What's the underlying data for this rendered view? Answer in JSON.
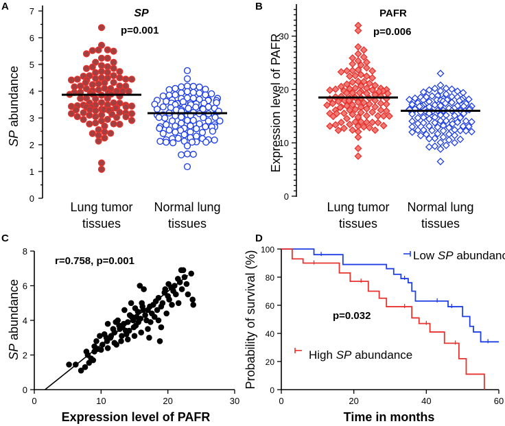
{
  "colors": {
    "red": "#e8312c",
    "red_fill": "#f07a76",
    "red_edge": "#a04040",
    "blue": "#1f3fe6",
    "black": "#000000"
  },
  "chart_data": [
    {
      "panel": "A",
      "type": "scatter",
      "title": "SP",
      "annotation": "p=0.001",
      "ylabel": "SP abundance",
      "ylabel_italic_part": "SP",
      "ylabel_rest": " abundance",
      "ylim": [
        0,
        7
      ],
      "yticks": [
        0,
        1,
        2,
        3,
        4,
        5,
        6,
        7
      ],
      "categories": [
        {
          "line1": "Lung tumor",
          "line2": "tissues",
          "n": 115,
          "mean": 3.87,
          "min": 1.08,
          "max": 6.38,
          "marker": "circle-filled",
          "color": "#e8312c"
        },
        {
          "line1": "Normal lung",
          "line2": "tissues",
          "n": 115,
          "mean": 3.18,
          "min": 1.18,
          "max": 4.77,
          "marker": "circle-open",
          "color": "#1f3fe6"
        }
      ]
    },
    {
      "panel": "B",
      "type": "scatter",
      "title": "PAFR",
      "annotation": "p=0.006",
      "ylabel": "Expression level of PAFR",
      "ylim": [
        0,
        36
      ],
      "yticks": [
        0,
        10,
        20,
        30
      ],
      "categories": [
        {
          "line1": "Lung tumor",
          "line2": "tissues",
          "n": 115,
          "mean": 18.5,
          "min": 7.5,
          "max": 32.0,
          "marker": "diamond-filled",
          "color": "#e8312c"
        },
        {
          "line1": "Normal lung",
          "line2": "tissues",
          "n": 115,
          "mean": 16.0,
          "min": 6.5,
          "max": 23.0,
          "marker": "diamond-open",
          "color": "#1f3fe6"
        }
      ]
    },
    {
      "panel": "C",
      "type": "scatter",
      "annotation": "r=0.758, p=0.001",
      "xlabel": "Expression level of PAFR",
      "ylabel": "SP abundance",
      "ylabel_italic_part": "SP",
      "ylabel_rest": " abundance",
      "xlim": [
        0,
        30
      ],
      "ylim": [
        0,
        8
      ],
      "xticks": [
        0,
        10,
        20,
        30
      ],
      "yticks": [
        0,
        2,
        4,
        6,
        8
      ],
      "fit": {
        "x0": 1.6,
        "y0": 0.0,
        "x1": 23.0,
        "y1": 6.6
      },
      "points": [
        [
          5.2,
          1.45
        ],
        [
          6.2,
          1.45
        ],
        [
          7.0,
          1.1
        ],
        [
          7.6,
          1.3
        ],
        [
          8.2,
          1.55
        ],
        [
          8.0,
          2.0
        ],
        [
          9.0,
          2.2
        ],
        [
          9.5,
          2.35
        ],
        [
          10.2,
          2.6
        ],
        [
          10.8,
          3.0
        ],
        [
          11.5,
          3.1
        ],
        [
          12.0,
          3.3
        ],
        [
          12.3,
          2.6
        ],
        [
          12.8,
          3.5
        ],
        [
          13.2,
          3.6
        ],
        [
          13.7,
          3.4
        ],
        [
          14.0,
          3.9
        ],
        [
          14.3,
          4.3
        ],
        [
          14.8,
          4.0
        ],
        [
          15.2,
          3.7
        ],
        [
          15.5,
          4.5
        ],
        [
          15.9,
          4.1
        ],
        [
          16.2,
          4.8
        ],
        [
          16.6,
          4.3
        ],
        [
          17.0,
          4.6
        ],
        [
          17.4,
          3.9
        ],
        [
          17.8,
          4.9
        ],
        [
          18.2,
          5.1
        ],
        [
          18.6,
          5.3
        ],
        [
          19.0,
          4.8
        ],
        [
          19.5,
          5.6
        ],
        [
          20.0,
          5.4
        ],
        [
          20.5,
          5.9
        ],
        [
          21.0,
          6.0
        ],
        [
          21.5,
          6.4
        ],
        [
          22.0,
          6.9
        ],
        [
          22.5,
          6.5
        ],
        [
          23.0,
          5.5
        ],
        [
          23.7,
          5.2
        ],
        [
          23.8,
          4.9
        ],
        [
          22.3,
          6.9
        ],
        [
          21.8,
          6.2
        ],
        [
          20.8,
          5.7
        ],
        [
          15.8,
          6.0
        ],
        [
          16.4,
          5.8
        ],
        [
          14.5,
          5.0
        ],
        [
          13.5,
          4.6
        ],
        [
          12.5,
          4.0
        ],
        [
          11.0,
          3.8
        ],
        [
          18.0,
          4.2
        ],
        [
          18.8,
          2.8
        ],
        [
          17.2,
          3.0
        ],
        [
          16.0,
          3.3
        ],
        [
          15.0,
          3.1
        ],
        [
          14.0,
          2.9
        ],
        [
          13.0,
          2.8
        ],
        [
          12.0,
          2.7
        ],
        [
          11.0,
          2.4
        ],
        [
          10.0,
          2.3
        ],
        [
          9.0,
          2.5
        ],
        [
          8.5,
          1.8
        ],
        [
          10.5,
          3.2
        ],
        [
          11.8,
          3.5
        ],
        [
          13.4,
          3.8
        ],
        [
          14.6,
          4.2
        ],
        [
          15.6,
          3.9
        ],
        [
          16.8,
          4.0
        ],
        [
          17.6,
          4.4
        ],
        [
          18.4,
          4.6
        ],
        [
          19.2,
          5.0
        ],
        [
          20.2,
          5.2
        ],
        [
          21.2,
          5.5
        ],
        [
          22.8,
          6.1
        ],
        [
          23.5,
          6.7
        ],
        [
          19.8,
          4.4
        ],
        [
          17.0,
          3.5
        ],
        [
          16.3,
          4.6
        ],
        [
          15.3,
          4.2
        ],
        [
          14.2,
          3.4
        ],
        [
          13.8,
          3.2
        ],
        [
          12.7,
          3.7
        ],
        [
          11.4,
          3.0
        ],
        [
          9.8,
          3.1
        ],
        [
          8.8,
          1.7
        ],
        [
          7.8,
          2.2
        ],
        [
          19.0,
          3.6
        ],
        [
          20.6,
          4.9
        ],
        [
          18.6,
          4.0
        ],
        [
          17.3,
          4.8
        ],
        [
          16.1,
          5.0
        ],
        [
          15.1,
          4.7
        ],
        [
          14.9,
          3.6
        ],
        [
          13.1,
          3.1
        ],
        [
          12.2,
          3.9
        ],
        [
          10.9,
          2.8
        ],
        [
          9.3,
          2.8
        ],
        [
          21.6,
          5.0
        ],
        [
          22.1,
          5.8
        ],
        [
          19.6,
          5.8
        ],
        [
          20.1,
          6.1
        ]
      ]
    },
    {
      "panel": "D",
      "type": "line",
      "annotation": "p=0.032",
      "xlabel": "Time in months",
      "ylabel": "Probability of survival (%)",
      "xlim": [
        0,
        60
      ],
      "ylim": [
        0,
        100
      ],
      "xticks": [
        0,
        20,
        40,
        60
      ],
      "yticks": [
        0,
        20,
        40,
        60,
        80,
        100
      ],
      "series": [
        {
          "name": "Low SP abundance",
          "legend_pre": "Low ",
          "legend_italic": "SP",
          "legend_post": " abundance",
          "color": "#1f3fe6",
          "x": [
            0,
            9,
            17,
            24,
            29,
            31,
            33,
            35,
            36,
            37,
            46,
            50,
            52,
            53,
            55,
            60
          ],
          "y": [
            100,
            96,
            89,
            89,
            86,
            82,
            79,
            76,
            70,
            63,
            59,
            52,
            45,
            41,
            34,
            34
          ],
          "censor_x": [
            11,
            34,
            43,
            47,
            57
          ],
          "censor_y": [
            96,
            79,
            63,
            59,
            34
          ]
        },
        {
          "name": "High SP abundance",
          "legend_pre": "High ",
          "legend_italic": "SP",
          "legend_post": " abundance",
          "color": "#e8312c",
          "x": [
            0,
            3,
            6,
            16,
            19,
            24,
            27,
            29,
            31,
            36,
            38,
            41,
            45,
            49,
            51,
            56
          ],
          "y": [
            100,
            93,
            90,
            83,
            77,
            70,
            65,
            59,
            59,
            51,
            47,
            41,
            33,
            22,
            11,
            0
          ],
          "censor_x": [
            9,
            22,
            34,
            40,
            48
          ],
          "censor_y": [
            90,
            77,
            59,
            47,
            33
          ]
        }
      ]
    }
  ]
}
